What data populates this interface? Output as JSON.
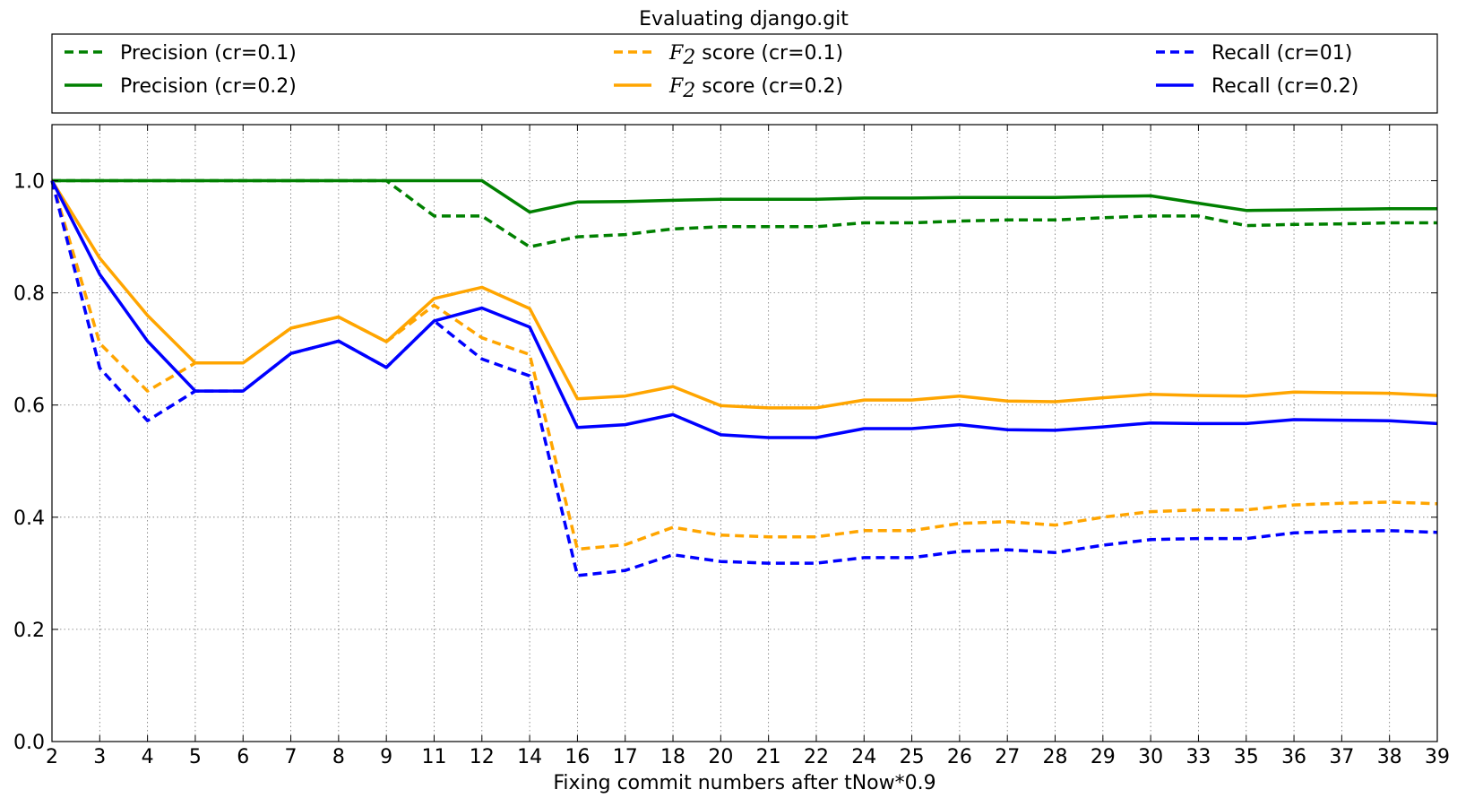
{
  "chart_data": {
    "type": "line",
    "title": "Evaluating django.git",
    "xlabel": "Fixing commit numbers after tNow*0.9",
    "ylabel": "",
    "ylim": [
      0,
      1.1
    ],
    "yticks": [
      "0.0",
      "0.2",
      "0.4",
      "0.6",
      "0.8",
      "1.0"
    ],
    "grid": true,
    "legend_position": "top (outside plot)",
    "categories": [
      "2",
      "3",
      "4",
      "5",
      "6",
      "7",
      "8",
      "9",
      "11",
      "12",
      "14",
      "16",
      "17",
      "18",
      "20",
      "21",
      "22",
      "24",
      "25",
      "26",
      "27",
      "28",
      "29",
      "30",
      "33",
      "35",
      "36",
      "37",
      "38",
      "39"
    ],
    "series": [
      {
        "name": "Precision (cr=0.1)",
        "color": "#008000",
        "style": "dashed",
        "values": [
          1.0,
          1.0,
          1.0,
          1.0,
          1.0,
          1.0,
          1.0,
          1.0,
          0.937,
          0.937,
          0.882,
          0.9,
          0.904,
          0.914,
          0.918,
          0.918,
          0.918,
          0.925,
          0.925,
          0.928,
          0.93,
          0.93,
          0.934,
          0.937,
          0.937,
          0.92,
          0.922,
          0.923,
          0.925,
          0.925
        ]
      },
      {
        "name": "Precision (cr=0.2)",
        "color": "#008000",
        "style": "solid",
        "values": [
          1.0,
          1.0,
          1.0,
          1.0,
          1.0,
          1.0,
          1.0,
          1.0,
          1.0,
          1.0,
          0.944,
          0.962,
          0.963,
          0.965,
          0.967,
          0.967,
          0.967,
          0.969,
          0.969,
          0.97,
          0.97,
          0.97,
          0.972,
          0.973,
          0.96,
          0.947,
          0.948,
          0.949,
          0.95,
          0.95
        ]
      },
      {
        "name_prefix": "F",
        "name_sub": "2",
        "name": " score (cr=0.1)",
        "color": "#FFA500",
        "style": "dashed",
        "values": [
          1.0,
          0.71,
          0.625,
          0.675,
          0.675,
          0.737,
          0.757,
          0.713,
          0.778,
          0.72,
          0.69,
          0.343,
          0.351,
          0.382,
          0.368,
          0.365,
          0.365,
          0.376,
          0.376,
          0.389,
          0.392,
          0.386,
          0.4,
          0.41,
          0.413,
          0.413,
          0.422,
          0.425,
          0.427,
          0.424
        ]
      },
      {
        "name_prefix": "F",
        "name_sub": "2",
        "name": " score (cr=0.2)",
        "color": "#FFA500",
        "style": "solid",
        "values": [
          1.0,
          0.862,
          0.76,
          0.675,
          0.675,
          0.737,
          0.757,
          0.713,
          0.79,
          0.81,
          0.772,
          0.611,
          0.616,
          0.633,
          0.599,
          0.595,
          0.595,
          0.609,
          0.609,
          0.616,
          0.607,
          0.606,
          0.613,
          0.619,
          0.617,
          0.616,
          0.623,
          0.622,
          0.621,
          0.617
        ]
      },
      {
        "name": "Recall (cr=01)",
        "color": "#0000FF",
        "style": "dashed",
        "values": [
          1.0,
          0.666,
          0.572,
          0.625,
          0.625,
          0.692,
          0.714,
          0.667,
          0.75,
          0.682,
          0.652,
          0.296,
          0.305,
          0.333,
          0.321,
          0.318,
          0.318,
          0.328,
          0.328,
          0.339,
          0.342,
          0.337,
          0.35,
          0.36,
          0.362,
          0.362,
          0.372,
          0.375,
          0.376,
          0.373
        ]
      },
      {
        "name": "Recall (cr=0.2)",
        "color": "#0000FF",
        "style": "solid",
        "values": [
          1.0,
          0.833,
          0.714,
          0.625,
          0.625,
          0.692,
          0.714,
          0.667,
          0.75,
          0.773,
          0.739,
          0.56,
          0.565,
          0.583,
          0.547,
          0.542,
          0.542,
          0.558,
          0.558,
          0.565,
          0.556,
          0.555,
          0.561,
          0.568,
          0.567,
          0.567,
          0.574,
          0.573,
          0.572,
          0.567
        ]
      }
    ]
  }
}
